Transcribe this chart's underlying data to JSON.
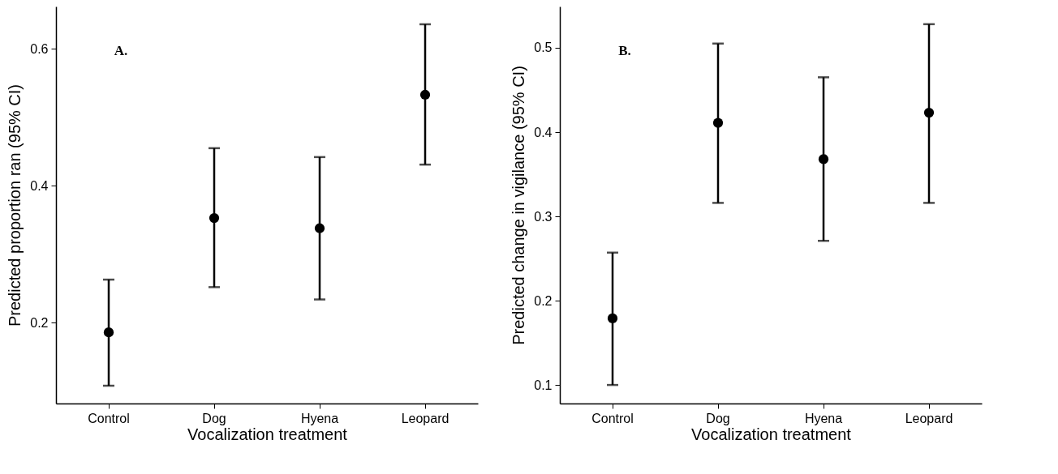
{
  "chart_data": [
    {
      "type": "scatter",
      "xlabel": "Vocalization treatment",
      "ylabel": "Predicted proportion ran (95% CI)",
      "categories": [
        "Control",
        "Dog",
        "Hyena",
        "Leopard"
      ],
      "series": [
        {
          "color": "#000000",
          "values": [
            0.186,
            0.353,
            0.338,
            0.533
          ],
          "errors": [
            [
              0.108,
              0.263
            ],
            [
              0.252,
              0.455
            ],
            [
              0.234,
              0.442
            ],
            [
              0.431,
              0.636
            ]
          ]
        }
      ],
      "ylim": [
        0.082,
        0.662
      ],
      "yticks": [
        0.2,
        0.4,
        0.6
      ],
      "grid": false,
      "marker": "circle",
      "annotations": [
        "A."
      ]
    },
    {
      "type": "scatter",
      "xlabel": "Vocalization treatment",
      "ylabel": "Predicted change in vigilance (95% CI)",
      "categories": [
        "Control",
        "Dog",
        "Hyena",
        "Leopard"
      ],
      "series": [
        {
          "color": "#000000",
          "values": [
            0.179,
            0.411,
            0.368,
            0.423
          ],
          "errors": [
            [
              0.1,
              0.257
            ],
            [
              0.316,
              0.505
            ],
            [
              0.271,
              0.465
            ],
            [
              0.316,
              0.528
            ]
          ]
        }
      ],
      "ylim": [
        0.078,
        0.549
      ],
      "yticks": [
        0.1,
        0.2,
        0.3,
        0.4,
        0.5
      ],
      "grid": false,
      "marker": "circle",
      "annotations": [
        "B."
      ]
    }
  ]
}
